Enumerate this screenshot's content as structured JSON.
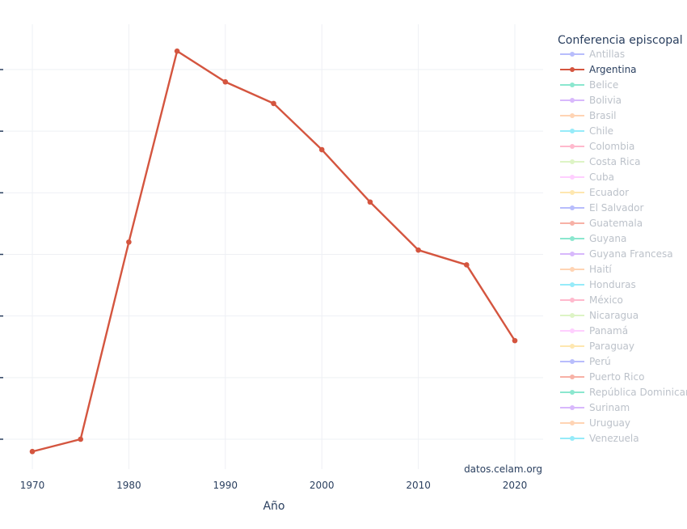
{
  "chart_data": {
    "type": "line",
    "xlabel": "Año",
    "ylabel": "",
    "xlim": [
      1968,
      2023
    ],
    "ylim": [
      -0.3,
      6.6
    ],
    "x_ticks": [
      1970,
      1980,
      1990,
      2000,
      2010,
      2020
    ],
    "y_gridlines": [
      0,
      1,
      2,
      3,
      4,
      5,
      6
    ],
    "grid": true,
    "legend_title": "Conferencia episcopal",
    "legend_placement": "right",
    "highlighted_series": "Argentina",
    "series": [
      {
        "name": "Antillas",
        "color": "#636efa",
        "highlighted": false
      },
      {
        "name": "Argentina",
        "color": "#d4553f",
        "highlighted": true,
        "x": [
          1970,
          1975,
          1980,
          1985,
          1990,
          1995,
          2000,
          2005,
          2010,
          2015,
          2020
        ],
        "y": [
          -0.2,
          0.0,
          3.2,
          6.3,
          5.8,
          5.45,
          4.7,
          3.85,
          3.07,
          2.83,
          1.6
        ]
      },
      {
        "name": "Belice",
        "color": "#00cc96",
        "highlighted": false
      },
      {
        "name": "Bolivia",
        "color": "#ab63fa",
        "highlighted": false
      },
      {
        "name": "Brasil",
        "color": "#ffa15a",
        "highlighted": false
      },
      {
        "name": "Chile",
        "color": "#19d3f3",
        "highlighted": false
      },
      {
        "name": "Colombia",
        "color": "#ff6692",
        "highlighted": false
      },
      {
        "name": "Costa Rica",
        "color": "#b6e880",
        "highlighted": false
      },
      {
        "name": "Cuba",
        "color": "#ff97ff",
        "highlighted": false
      },
      {
        "name": "Ecuador",
        "color": "#fecb52",
        "highlighted": false
      },
      {
        "name": "El Salvador",
        "color": "#636efa",
        "highlighted": false
      },
      {
        "name": "Guatemala",
        "color": "#ef553b",
        "highlighted": false
      },
      {
        "name": "Guyana",
        "color": "#00cc96",
        "highlighted": false
      },
      {
        "name": "Guyana Francesa",
        "color": "#ab63fa",
        "highlighted": false
      },
      {
        "name": "Haití",
        "color": "#ffa15a",
        "highlighted": false
      },
      {
        "name": "Honduras",
        "color": "#19d3f3",
        "highlighted": false
      },
      {
        "name": "México",
        "color": "#ff6692",
        "highlighted": false
      },
      {
        "name": "Nicaragua",
        "color": "#b6e880",
        "highlighted": false
      },
      {
        "name": "Panamá",
        "color": "#ff97ff",
        "highlighted": false
      },
      {
        "name": "Paraguay",
        "color": "#fecb52",
        "highlighted": false
      },
      {
        "name": "Perú",
        "color": "#636efa",
        "highlighted": false
      },
      {
        "name": "Puerto Rico",
        "color": "#ef553b",
        "highlighted": false
      },
      {
        "name": "República Dominicana",
        "color": "#00cc96",
        "highlighted": false
      },
      {
        "name": "Surinam",
        "color": "#ab63fa",
        "highlighted": false
      },
      {
        "name": "Uruguay",
        "color": "#ffa15a",
        "highlighted": false
      },
      {
        "name": "Venezuela",
        "color": "#19d3f3",
        "highlighted": false
      }
    ],
    "annotation": "datos.celam.org"
  }
}
